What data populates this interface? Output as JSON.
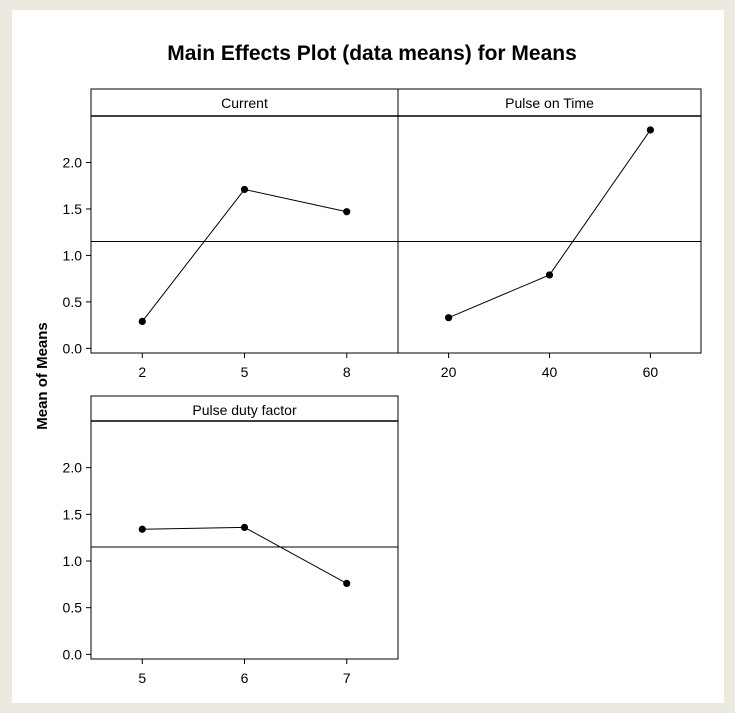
{
  "chart_data": {
    "type": "line",
    "title": "Main Effects Plot (data means) for Means",
    "ylabel": "Mean of Means",
    "ylim": [
      -0.05,
      2.5
    ],
    "yticks": [
      "0.0",
      "0.5",
      "1.0",
      "1.5",
      "2.0"
    ],
    "yticks_values": [
      0.0,
      0.5,
      1.0,
      1.5,
      2.0
    ],
    "overall_mean": 1.15,
    "grid": false,
    "panels": [
      {
        "factor": "Current",
        "categories": [
          "2",
          "5",
          "8"
        ],
        "values": [
          0.29,
          1.71,
          1.47
        ]
      },
      {
        "factor": "Pulse on Time",
        "categories": [
          "20",
          "40",
          "60"
        ],
        "values": [
          0.33,
          0.79,
          2.35
        ]
      },
      {
        "factor": "Pulse duty factor",
        "categories": [
          "5",
          "6",
          "7"
        ],
        "values": [
          1.34,
          1.36,
          0.76
        ]
      }
    ]
  }
}
